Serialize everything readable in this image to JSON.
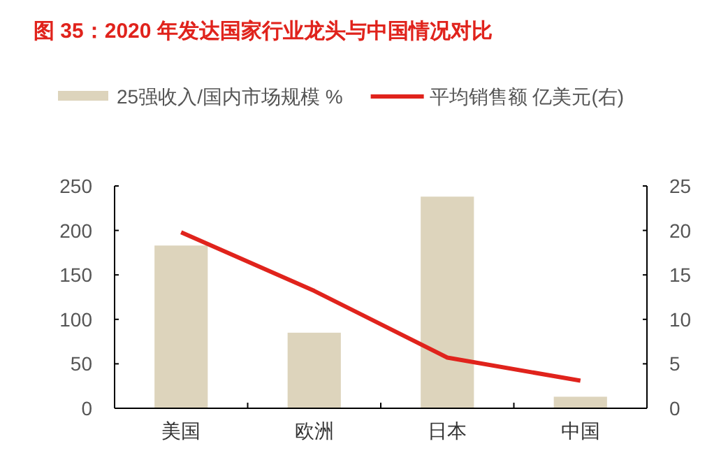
{
  "chart_data": {
    "type": "bar",
    "title": "图 35：2020 年发达国家行业龙头与中国情况对比",
    "categories": [
      "美国",
      "欧洲",
      "日本",
      "中国"
    ],
    "series": [
      {
        "name": "25强收入/国内市场规模 %",
        "color": "#ddd4bc",
        "values": [
          183,
          85,
          238,
          13
        ]
      },
      {
        "name": "平均销售额 亿美元(右)",
        "type": "line",
        "axis": "y2",
        "color": "#e0231c",
        "values": [
          19.8,
          13.2,
          5.7,
          3.1
        ]
      }
    ],
    "ylim": [
      0,
      250
    ],
    "yticks": [
      0,
      50,
      100,
      150,
      200,
      250
    ],
    "y2lim": [
      0,
      25
    ],
    "y2ticks": [
      0,
      5,
      10,
      15,
      20,
      25
    ],
    "legend": "top",
    "grid": false
  }
}
